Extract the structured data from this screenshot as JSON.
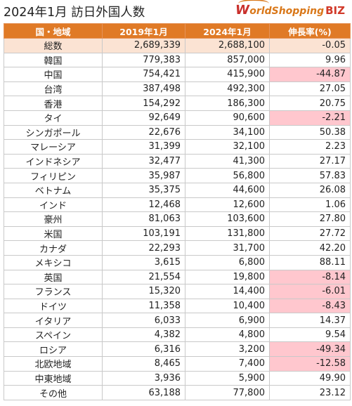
{
  "title": "2024年1月 訪日外国人数",
  "logo": {
    "mark": "W",
    "text": "orldShopping",
    "biz": "BIZ"
  },
  "colors": {
    "header_bg": "#e07a26",
    "total_row_bg": "#fbe3d3",
    "negative_bg": "#ffc7ce"
  },
  "table": {
    "headers": [
      "国・地域",
      "2019年1月",
      "2024年1月",
      "伸長率(%)"
    ],
    "rows": [
      {
        "name": "総数",
        "y2019": "2,689,339",
        "y2024": "2,688,100",
        "rate": "-0.05",
        "total": true
      },
      {
        "name": "韓国",
        "y2019": "779,383",
        "y2024": "857,000",
        "rate": "9.96"
      },
      {
        "name": "中国",
        "y2019": "754,421",
        "y2024": "415,900",
        "rate": "-44.87"
      },
      {
        "name": "台湾",
        "y2019": "387,498",
        "y2024": "492,300",
        "rate": "27.05"
      },
      {
        "name": "香港",
        "y2019": "154,292",
        "y2024": "186,300",
        "rate": "20.75"
      },
      {
        "name": "タイ",
        "y2019": "92,649",
        "y2024": "90,600",
        "rate": "-2.21"
      },
      {
        "name": "シンガポール",
        "y2019": "22,676",
        "y2024": "34,100",
        "rate": "50.38"
      },
      {
        "name": "マレーシア",
        "y2019": "31,399",
        "y2024": "32,100",
        "rate": "2.23"
      },
      {
        "name": "インドネシア",
        "y2019": "32,477",
        "y2024": "41,300",
        "rate": "27.17"
      },
      {
        "name": "フィリピン",
        "y2019": "35,987",
        "y2024": "56,800",
        "rate": "57.83"
      },
      {
        "name": "ベトナム",
        "y2019": "35,375",
        "y2024": "44,600",
        "rate": "26.08"
      },
      {
        "name": "インド",
        "y2019": "12,468",
        "y2024": "12,600",
        "rate": "1.06"
      },
      {
        "name": "豪州",
        "y2019": "81,063",
        "y2024": "103,600",
        "rate": "27.80"
      },
      {
        "name": "米国",
        "y2019": "103,191",
        "y2024": "131,800",
        "rate": "27.72"
      },
      {
        "name": "カナダ",
        "y2019": "22,293",
        "y2024": "31,700",
        "rate": "42.20"
      },
      {
        "name": "メキシコ",
        "y2019": "3,615",
        "y2024": "6,800",
        "rate": "88.11"
      },
      {
        "name": "英国",
        "y2019": "21,554",
        "y2024": "19,800",
        "rate": "-8.14"
      },
      {
        "name": "フランス",
        "y2019": "15,320",
        "y2024": "14,400",
        "rate": "-6.01"
      },
      {
        "name": "ドイツ",
        "y2019": "11,358",
        "y2024": "10,400",
        "rate": "-8.43"
      },
      {
        "name": "イタリア",
        "y2019": "6,033",
        "y2024": "6,900",
        "rate": "14.37"
      },
      {
        "name": "スペイン",
        "y2019": "4,382",
        "y2024": "4,800",
        "rate": "9.54"
      },
      {
        "name": "ロシア",
        "y2019": "6,316",
        "y2024": "3,200",
        "rate": "-49.34"
      },
      {
        "name": "北欧地域",
        "y2019": "8,465",
        "y2024": "7,400",
        "rate": "-12.58"
      },
      {
        "name": "中東地域",
        "y2019": "3,936",
        "y2024": "5,900",
        "rate": "49.90"
      },
      {
        "name": "その他",
        "y2019": "63,188",
        "y2024": "77,800",
        "rate": "23.12"
      }
    ]
  }
}
